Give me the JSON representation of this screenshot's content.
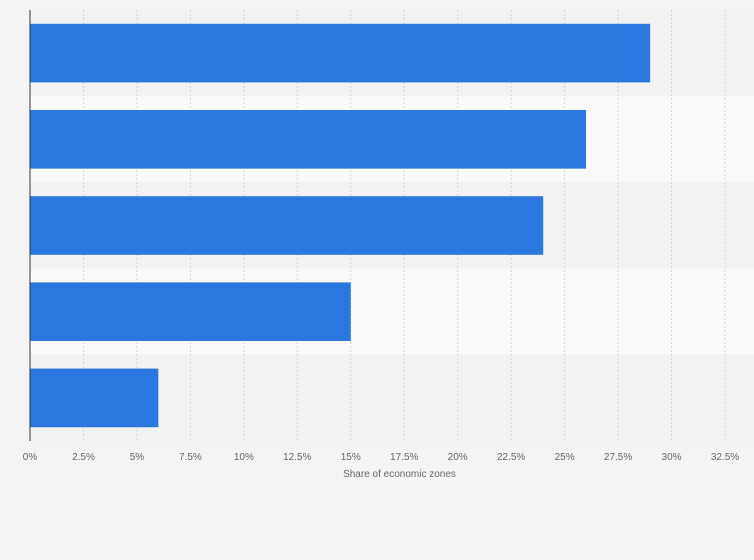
{
  "chart_data": {
    "type": "bar",
    "orientation": "horizontal",
    "categories": [
      "",
      "",
      "",
      "",
      ""
    ],
    "values": [
      29,
      26,
      24,
      15,
      6
    ],
    "title": "",
    "xlabel": "Share of economic zones",
    "ylabel": "",
    "xlim": [
      0,
      32.5
    ],
    "x_ticks": [
      0,
      2.5,
      5,
      7.5,
      10,
      12.5,
      15,
      17.5,
      20,
      22.5,
      25,
      27.5,
      30,
      32.5
    ],
    "x_tick_labels": [
      "0%",
      "2.5%",
      "5%",
      "7.5%",
      "10%",
      "12.5%",
      "15%",
      "17.5%",
      "20%",
      "22.5%",
      "25%",
      "27.5%",
      "30%",
      "32.5%"
    ],
    "grid": true,
    "legend": "none",
    "bar_color": "#2a78df",
    "band_colors": [
      "#f2f2f2",
      "#f9f9f9"
    ]
  }
}
